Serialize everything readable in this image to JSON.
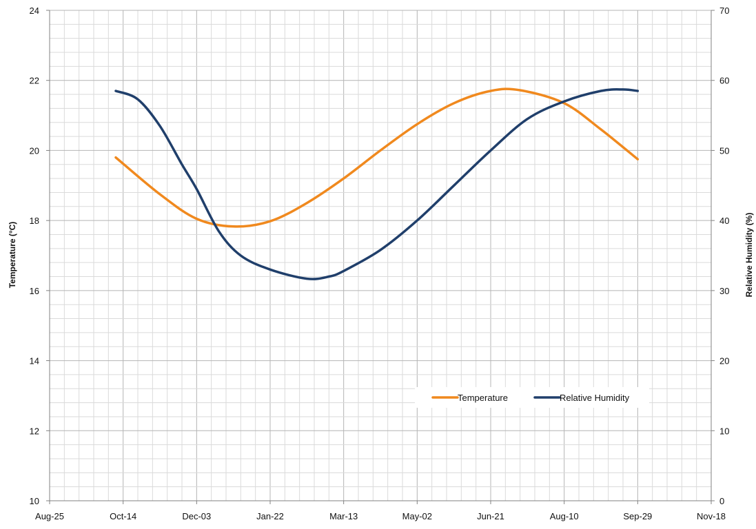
{
  "chart_data": {
    "type": "line",
    "title": "",
    "xlabel": "",
    "ylabel": "Temperature (°C)",
    "y2label": "Relative Humidity (%)",
    "x_tick_labels": [
      "Aug-25",
      "Oct-14",
      "Dec-03",
      "Jan-22",
      "Mar-13",
      "May-02",
      "Jun-21",
      "Aug-10",
      "Sep-29",
      "Nov-18"
    ],
    "x_range": [
      "Aug-25",
      "Nov-18"
    ],
    "ylim": [
      10,
      24
    ],
    "y_ticks": [
      "10",
      "12",
      "14",
      "16",
      "18",
      "20",
      "22",
      "24"
    ],
    "y2lim": [
      0,
      70
    ],
    "y2_ticks": [
      "0",
      "10",
      "20",
      "30",
      "40",
      "50",
      "60",
      "70"
    ],
    "grid": true,
    "legend_position": "bottom-right",
    "series": [
      {
        "name": "Temperature",
        "axis": "left",
        "color": "#f0891e",
        "x": [
          "Oct-09",
          "Nov-08",
          "Dec-03",
          "Dec-28",
          "Jan-22",
          "Feb-16",
          "Mar-13",
          "Apr-07",
          "May-02",
          "May-27",
          "Jun-21",
          "Jul-11",
          "Aug-10",
          "Sep-04",
          "Sep-29"
        ],
        "values": [
          19.8,
          18.75,
          18.05,
          17.83,
          17.98,
          18.5,
          19.2,
          20.0,
          20.75,
          21.35,
          21.7,
          21.72,
          21.35,
          20.6,
          19.75
        ]
      },
      {
        "name": "Relative Humidity",
        "axis": "right",
        "color": "#203f6b",
        "x": [
          "Oct-09",
          "Oct-24",
          "Nov-08",
          "Nov-23",
          "Dec-03",
          "Dec-18",
          "Jan-02",
          "Jan-22",
          "Feb-16",
          "Mar-03",
          "Mar-13",
          "Apr-07",
          "May-02",
          "May-27",
          "Jun-21",
          "Jul-16",
          "Aug-10",
          "Sep-04",
          "Sep-19",
          "Sep-29"
        ],
        "values": [
          58.5,
          57.3,
          53.5,
          48.0,
          44.5,
          38.5,
          35.0,
          33.0,
          31.7,
          32.0,
          32.8,
          35.8,
          40.0,
          45.0,
          50.0,
          54.5,
          57.0,
          58.5,
          58.7,
          58.5
        ]
      }
    ]
  }
}
